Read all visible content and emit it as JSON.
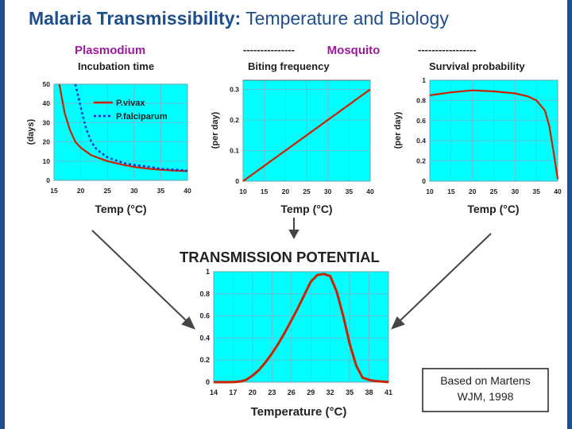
{
  "slide": {
    "title_bold": "Malaria Transmissibility:",
    "title_rest": " Temperature and Biology",
    "group_plasmodium": "Plasmodium",
    "group_mosquito_dash_left": "---------------",
    "group_mosquito": "Mosquito",
    "group_mosquito_dash_right": "-----------------",
    "citation_line1": "Based on Martens",
    "citation_line2": "WJM, 1998",
    "colors": {
      "title": "#1f4e8c",
      "group": "#9b1b9b",
      "plot_bg": "#00ffff",
      "curve": "#cc2200",
      "curve2": "#1a2fd6"
    }
  },
  "chart_data": [
    {
      "type": "line",
      "title": "Incubation time",
      "xlabel": "Temp (°C)",
      "ylabel": "(days)",
      "xlim": [
        15,
        40
      ],
      "ylim": [
        0,
        50
      ],
      "xticks": [
        "15",
        "20",
        "25",
        "30",
        "35",
        "40"
      ],
      "yticks": [
        "0",
        "10",
        "20",
        "30",
        "40",
        "50"
      ],
      "legend": "top-right",
      "series": [
        {
          "name": "P.vivax",
          "color": "#cc2200",
          "dashed": false,
          "x": [
            16,
            17,
            18,
            19,
            20,
            22,
            25,
            28,
            30,
            33,
            35,
            38,
            40
          ],
          "y": [
            50,
            35,
            26,
            20,
            17,
            13,
            10,
            8,
            7,
            6,
            5.5,
            5,
            4.8
          ]
        },
        {
          "name": "P.falciparum",
          "color": "#1a2fd6",
          "dashed": true,
          "x": [
            19,
            20,
            21,
            22,
            23,
            25,
            28,
            30,
            33,
            35,
            38,
            40
          ],
          "y": [
            50,
            38,
            27,
            20,
            16,
            12,
            9,
            8,
            7,
            6,
            5.5,
            5
          ]
        }
      ]
    },
    {
      "type": "line",
      "title": "Biting frequency",
      "xlabel": "Temp (°C)",
      "ylabel": "(per day)",
      "xlim": [
        10,
        40
      ],
      "ylim": [
        0,
        0.33
      ],
      "xticks": [
        "10",
        "15",
        "20",
        "25",
        "30",
        "35",
        "40"
      ],
      "yticks": [
        "0",
        "0.1",
        "0.2",
        "0.3"
      ],
      "series": [
        {
          "color": "#cc2200",
          "x": [
            10,
            40
          ],
          "y": [
            0,
            0.3
          ]
        }
      ]
    },
    {
      "type": "line",
      "title": "Survival probability",
      "xlabel": "Temp (°C)",
      "ylabel": "(per day)",
      "xlim": [
        10,
        40
      ],
      "ylim": [
        0,
        1
      ],
      "xticks": [
        "10",
        "15",
        "20",
        "25",
        "30",
        "35",
        "40"
      ],
      "yticks": [
        "0",
        "0.2",
        "0.4",
        "0.6",
        "0.8",
        "1"
      ],
      "series": [
        {
          "color": "#cc2200",
          "x": [
            10,
            15,
            20,
            25,
            30,
            33,
            35,
            37,
            38,
            39,
            40
          ],
          "y": [
            0.85,
            0.88,
            0.9,
            0.89,
            0.87,
            0.84,
            0.8,
            0.7,
            0.55,
            0.3,
            0.02
          ]
        }
      ]
    },
    {
      "type": "line",
      "title": "TRANSMISSION POTENTIAL",
      "xlabel": "Temperature (°C)",
      "ylabel": "",
      "xlim": [
        14,
        41
      ],
      "ylim": [
        0,
        1
      ],
      "xticks": [
        "14",
        "17",
        "20",
        "23",
        "26",
        "29",
        "32",
        "35",
        "38",
        "41"
      ],
      "yticks": [
        "0",
        "0.2",
        "0.4",
        "0.6",
        "0.8",
        "1"
      ],
      "series": [
        {
          "color": "#cc2200",
          "x": [
            14,
            17,
            18,
            19,
            20,
            21,
            22,
            23,
            24,
            25,
            26,
            27,
            28,
            29,
            30,
            31,
            32,
            33,
            34,
            35,
            36,
            37,
            38,
            39,
            40,
            41
          ],
          "y": [
            0,
            0,
            0.005,
            0.02,
            0.06,
            0.11,
            0.18,
            0.26,
            0.35,
            0.45,
            0.56,
            0.67,
            0.79,
            0.91,
            0.97,
            0.98,
            0.96,
            0.82,
            0.6,
            0.35,
            0.15,
            0.04,
            0.02,
            0.01,
            0.005,
            0
          ]
        }
      ]
    }
  ]
}
